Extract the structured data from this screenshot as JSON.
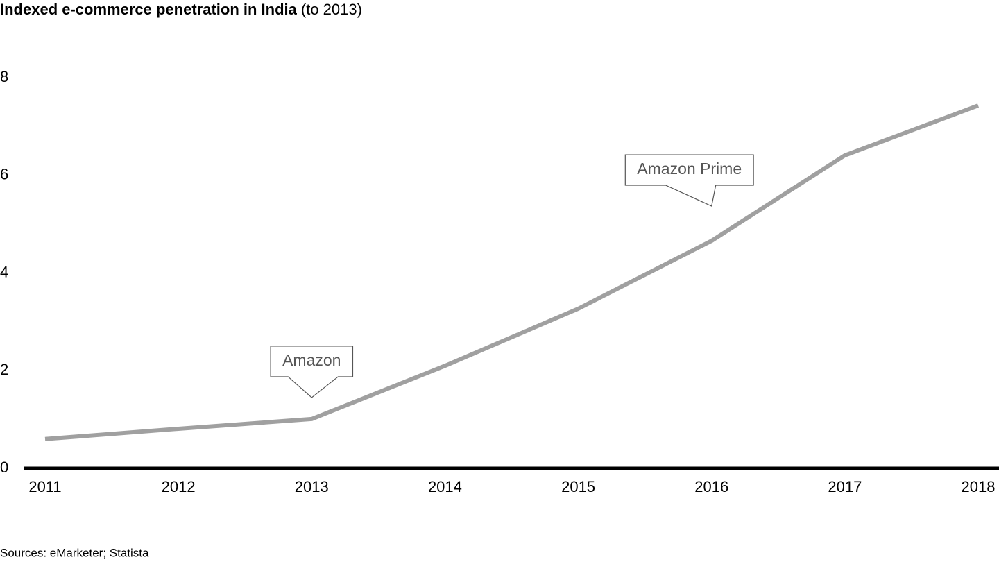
{
  "chart_data": {
    "type": "line",
    "title": "Indexed e-commerce penetration in India",
    "subtitle": "(to 2013)",
    "categories": [
      "2011",
      "2012",
      "2013",
      "2014",
      "2015",
      "2016",
      "2017",
      "2018"
    ],
    "values": [
      0.6,
      0.81,
      1.01,
      2.1,
      3.27,
      4.66,
      6.41,
      7.43
    ],
    "color": "#a0a0a0",
    "ylim": [
      0,
      8
    ],
    "yticks": [
      0,
      2,
      4,
      6,
      8
    ],
    "grid": false,
    "annotations": [
      {
        "text": "Amazon",
        "category": "2013"
      },
      {
        "text": "Amazon Prime",
        "category": "2016"
      }
    ],
    "source": "Sources: eMarketer; Statista"
  }
}
